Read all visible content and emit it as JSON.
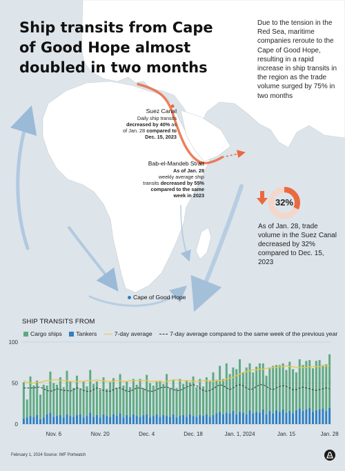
{
  "title": "Ship transits from Cape of Good Hope almost doubled in two months",
  "intro": "Due to the tension in the Red Sea, maritime companies reroute to the Cape of Good Hope, resulting in a rapid increase in ship transits in the region as the trade volume surged by 75% in two months",
  "map": {
    "suez": {
      "label": "Suez Canal",
      "line1": "Daily ship transits",
      "line2_bold": "decreased by 40%",
      "line2_rest": " as",
      "line3_pre": "of Jan. 28 ",
      "line3_bold": "compared to",
      "line4_bold": "Dec. 15, 2023"
    },
    "bab": {
      "label": "Bab-el-Mandeb Strait",
      "line1_bold": "As of Jan. 28",
      "line2": "weekly average ship",
      "line3_pre": "transits ",
      "line3_bold": "decreased by 55%",
      "line4_bold": "compared to the same",
      "line5_bold": "week in 2023"
    },
    "cape": "Cape of Good Hope"
  },
  "stat": {
    "value": "32%",
    "fraction": 0.32,
    "text": "As of Jan. 28, trade volume in the Suez Canal decreased by 32% compared to Dec. 15, 2023"
  },
  "colors": {
    "cargo": "#5fa982",
    "tankers": "#2f7fc1",
    "avg7": "#e8c84a",
    "prev": "#333333",
    "accent": "#ea6a3f",
    "land": "#ffffff",
    "sea": "#dde4ea"
  },
  "chart_data": {
    "type": "bar",
    "title": "SHIP TRANSITS FROM",
    "legend": [
      {
        "key": "cargo",
        "label": "Cargo ships"
      },
      {
        "key": "tankers",
        "label": "Tankers"
      },
      {
        "key": "avg7",
        "label": "7-day average"
      },
      {
        "key": "prev",
        "label": "7-day average compared to the same week of the previous year"
      }
    ],
    "x_start": "2023-10-28",
    "x_end": "2024-01-28",
    "x_ticks": [
      "Nov. 6",
      "Nov. 20",
      "Dec. 4",
      "Dec. 18",
      "Jan. 1, 2024",
      "Jan. 15",
      "Jan. 28"
    ],
    "x_tick_dates": [
      "2023-11-06",
      "2023-11-20",
      "2023-12-04",
      "2023-12-18",
      "2024-01-01",
      "2024-01-15",
      "2024-01-28"
    ],
    "y_ticks": [
      0,
      50,
      100
    ],
    "ylim": [
      0,
      100
    ],
    "series": [
      {
        "name": "Cargo ships",
        "key": "cargo",
        "stacked": true,
        "values": [
          44,
          22,
          48,
          38,
          42,
          30,
          40,
          35,
          50,
          41,
          38,
          46,
          37,
          53,
          42,
          35,
          48,
          31,
          44,
          36,
          52,
          40,
          41,
          34,
          45,
          33,
          42,
          44,
          34,
          48,
          39,
          41,
          36,
          43,
          38,
          46,
          33,
          48,
          42,
          37,
          40,
          44,
          38,
          51,
          35,
          42,
          36,
          45,
          38,
          44,
          39,
          48,
          36,
          44,
          36,
          45,
          43,
          52,
          41,
          56,
          43,
          60,
          48,
          53,
          55,
          64,
          49,
          57,
          57,
          50,
          55,
          60,
          56,
          47,
          53,
          58,
          55,
          57,
          56,
          52,
          60,
          54,
          46,
          60,
          56,
          59,
          58,
          53,
          60,
          60,
          53,
          57,
          65
        ]
      },
      {
        "name": "Tankers",
        "key": "tankers",
        "stacked": true,
        "values": [
          7,
          8,
          10,
          9,
          11,
          6,
          8,
          12,
          14,
          9,
          10,
          11,
          8,
          12,
          10,
          9,
          11,
          12,
          8,
          10,
          14,
          9,
          11,
          8,
          12,
          10,
          9,
          12,
          10,
          13,
          8,
          11,
          9,
          12,
          10,
          9,
          11,
          12,
          8,
          10,
          12,
          9,
          11,
          10,
          9,
          12,
          8,
          10,
          11,
          9,
          12,
          10,
          9,
          11,
          10,
          12,
          9,
          11,
          13,
          15,
          12,
          14,
          13,
          16,
          12,
          15,
          14,
          12,
          17,
          13,
          15,
          14,
          18,
          12,
          16,
          13,
          17,
          15,
          18,
          14,
          16,
          13,
          17,
          19,
          16,
          18,
          20,
          15,
          17,
          18,
          19,
          16,
          20
        ]
      },
      {
        "name": "7-day average",
        "key": "avg7",
        "type": "line",
        "values": [
          53,
          51,
          50,
          50,
          51,
          51,
          52,
          53,
          53,
          54,
          54,
          53,
          53,
          53,
          52,
          52,
          52,
          52,
          52,
          53,
          53,
          53,
          54,
          53,
          53,
          52,
          52,
          52,
          53,
          53,
          52,
          52,
          53,
          53,
          53,
          53,
          53,
          53,
          52,
          52,
          52,
          52,
          51,
          52,
          53,
          54,
          54,
          53,
          53,
          53,
          53,
          52,
          52,
          52,
          53,
          53,
          53,
          52,
          53,
          53,
          53,
          55,
          56,
          57,
          59,
          61,
          63,
          64,
          65,
          66,
          66,
          67,
          67,
          68,
          68,
          69,
          69,
          70,
          70,
          71,
          70,
          70,
          69,
          69,
          69,
          69,
          70,
          70,
          70,
          70,
          71,
          71,
          71
        ]
      },
      {
        "name": "7-day average compared to the same week of the previous year",
        "key": "prev",
        "type": "line",
        "dashed": true,
        "values": [
          44,
          44,
          44,
          44,
          45,
          45,
          43,
          41,
          40,
          41,
          43,
          42,
          41,
          41,
          40,
          42,
          44,
          43,
          41,
          40,
          40,
          42,
          44,
          43,
          41,
          40,
          40,
          42,
          44,
          44,
          42,
          40,
          40,
          42,
          44,
          44,
          43,
          41,
          40,
          40,
          42,
          44,
          45,
          45,
          44,
          42,
          41,
          41,
          43,
          45,
          47,
          48,
          47,
          44,
          41,
          40,
          41,
          43,
          46,
          48,
          47,
          44,
          42,
          44,
          47,
          48,
          47,
          44,
          42,
          43,
          46,
          48,
          48,
          46,
          43,
          42,
          44,
          46,
          47,
          46,
          44,
          42,
          42,
          44,
          45,
          44,
          43,
          42,
          41,
          42,
          43,
          44,
          43
        ]
      }
    ]
  },
  "footer": "February 1, 2024  Source: IMF Portwatch"
}
